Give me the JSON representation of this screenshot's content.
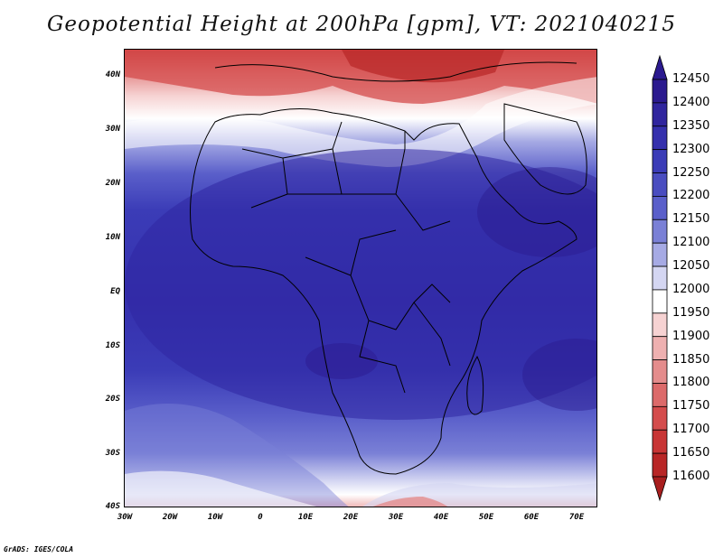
{
  "title": "Geopotential Height at 200hPa [gpm], VT: 2021040215",
  "credit": "GrADS: IGES/COLA",
  "map": {
    "lat_labels": [
      "40N",
      "30N",
      "20N",
      "10N",
      "EQ",
      "10S",
      "20S",
      "30S",
      "40S"
    ],
    "lon_labels": [
      "30W",
      "20W",
      "10W",
      "0",
      "10E",
      "20E",
      "30E",
      "40E",
      "50E",
      "60E",
      "70E"
    ],
    "lat_range": [
      -40,
      45
    ],
    "lon_range": [
      -30,
      75
    ]
  },
  "colorbar": {
    "levels": [
      12450,
      12400,
      12350,
      12300,
      12250,
      12200,
      12150,
      12100,
      12050,
      12000,
      11950,
      11900,
      11850,
      11800,
      11750,
      11700,
      11650,
      11600
    ],
    "labels": [
      "12450",
      "12400",
      "12350",
      "12300",
      "12250",
      "12200",
      "12150",
      "12100",
      "12050",
      "12000",
      "11950",
      "11900",
      "11850",
      "11800",
      "11750",
      "11700",
      "11650",
      "11600"
    ],
    "colors": [
      "#2b1a8f",
      "#30259e",
      "#3530ad",
      "#3b3cb7",
      "#4a4dc0",
      "#5a5fca",
      "#7a80d6",
      "#a6aae4",
      "#d4d6f2",
      "#ffffff",
      "#f6d2d2",
      "#eeb0b0",
      "#e48c8c",
      "#dc6a6a",
      "#d44c4c",
      "#c83535",
      "#b82626"
    ],
    "top_arrow_color": "#2b1a8f",
    "bottom_arrow_color": "#a81e1e"
  }
}
